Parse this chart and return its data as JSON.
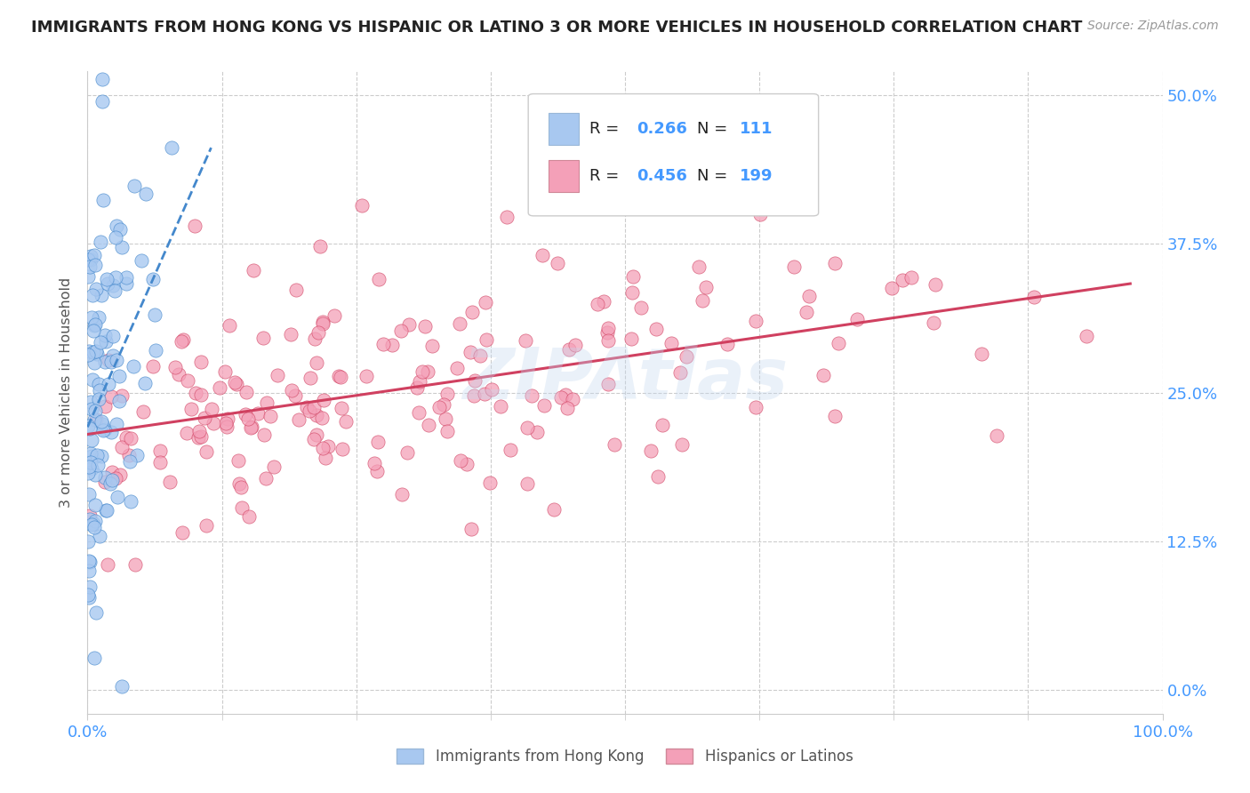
{
  "title": "IMMIGRANTS FROM HONG KONG VS HISPANIC OR LATINO 3 OR MORE VEHICLES IN HOUSEHOLD CORRELATION CHART",
  "source": "Source: ZipAtlas.com",
  "ylabel": "3 or more Vehicles in Household",
  "ylabel_ticks": [
    "0.0%",
    "12.5%",
    "25.0%",
    "37.5%",
    "50.0%"
  ],
  "ylim": [
    -0.02,
    0.52
  ],
  "xlim": [
    0.0,
    1.0
  ],
  "blue_R": 0.266,
  "blue_N": 111,
  "pink_R": 0.456,
  "pink_N": 199,
  "blue_color": "#a8c8f0",
  "pink_color": "#f4a0b8",
  "blue_line_color": "#4488cc",
  "pink_line_color": "#d04060",
  "blue_dot_color": "#a8c8f0",
  "pink_dot_color": "#f4a0b8",
  "legend_label_blue": "Immigrants from Hong Kong",
  "legend_label_pink": "Hispanics or Latinos",
  "watermark": "ZIPAtlas",
  "background_color": "#ffffff",
  "grid_color": "#cccccc",
  "title_color": "#222222",
  "axis_label_color": "#4499ff",
  "legend_RN_color": "#4499ff",
  "seed": 42
}
